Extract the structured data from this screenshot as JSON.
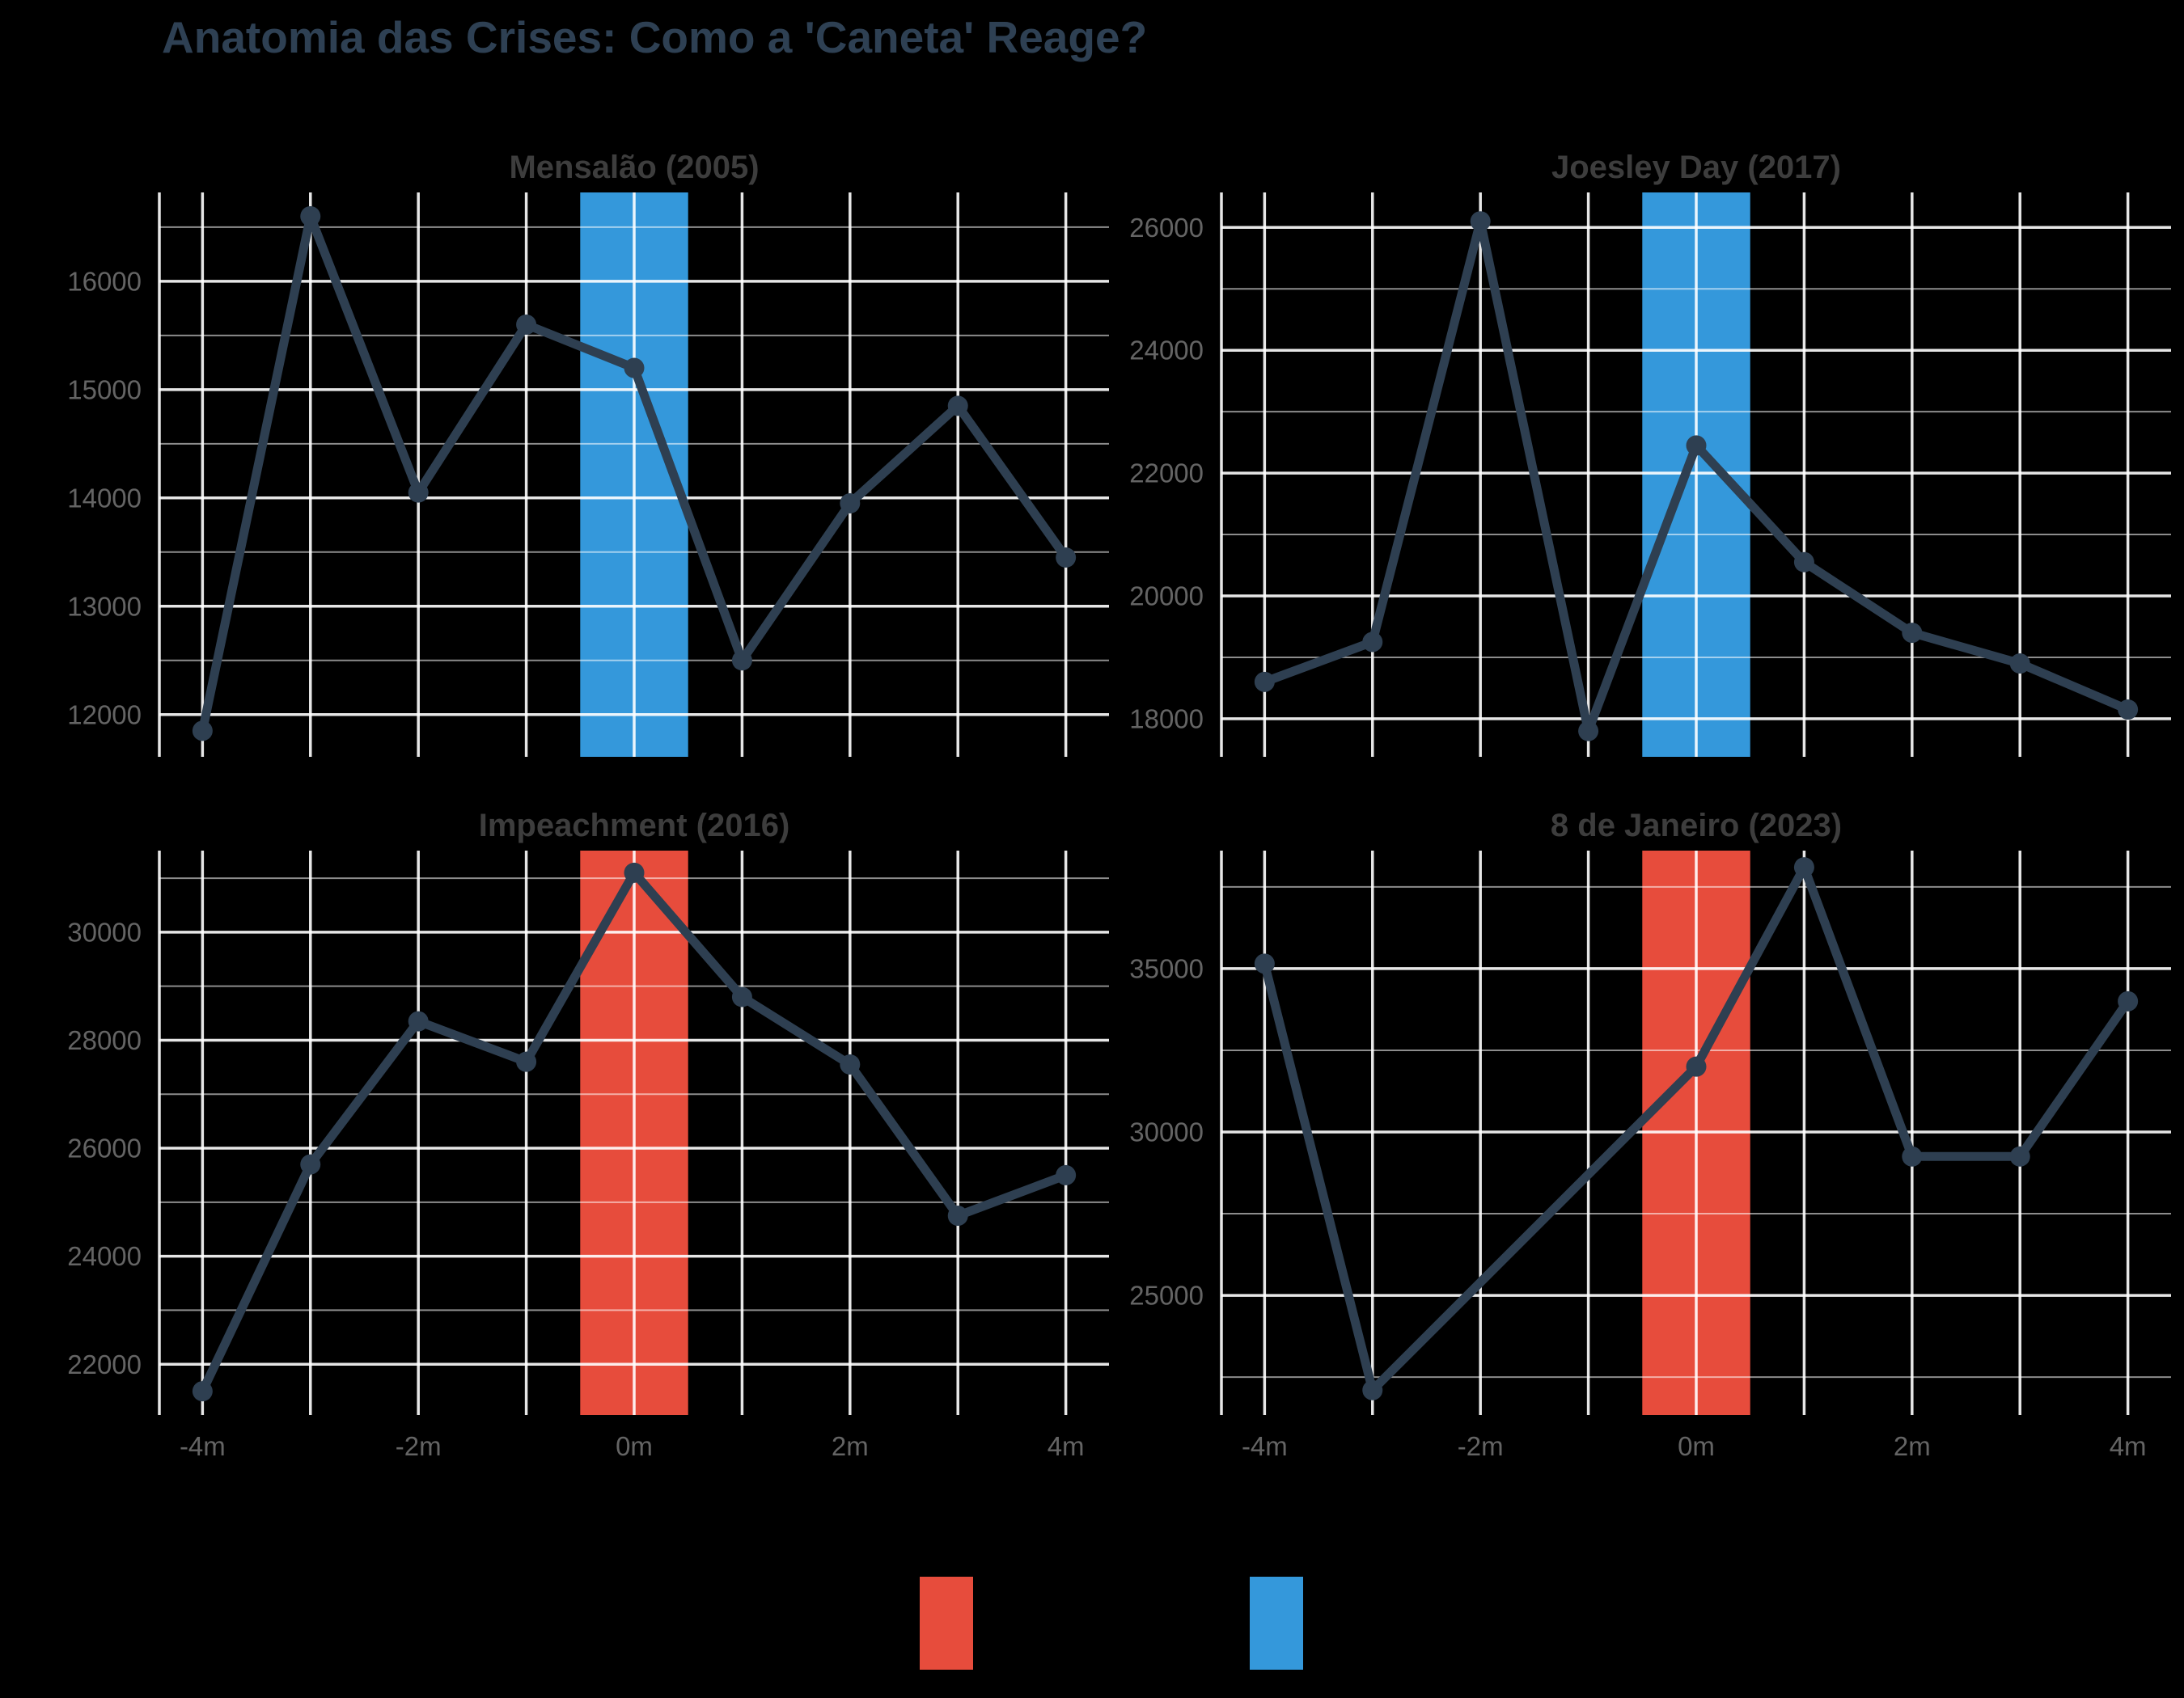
{
  "page_title": "Anatomia das Crises: Como a 'Caneta' Reage?",
  "colors": {
    "background": "#000000",
    "series_line": "#2e3f51",
    "grid_major": "rgba(255,255,255,0.90)",
    "grid_minor": "rgba(255,255,255,0.55)",
    "band_blue": "#3498db",
    "band_red": "#e74c3c",
    "main_title": "#2e4053",
    "subplot_title": "#3d3d3d",
    "tick_label": "#646464"
  },
  "x_axis": {
    "tick_positions": [
      -4,
      -2,
      0,
      2,
      4
    ],
    "tick_labels": [
      "-4m",
      "-2m",
      "0m",
      "2m",
      "4m"
    ]
  },
  "legend": {
    "swatches": [
      {
        "name": "legend-swatch-red",
        "color": "#e74c3c"
      },
      {
        "name": "legend-swatch-blue",
        "color": "#3498db"
      }
    ]
  },
  "chart_data": [
    {
      "id": "mensalao",
      "type": "line",
      "title": "Mensalão (2005)",
      "row": 0,
      "col": 0,
      "band_color": "#3498db",
      "band_x": [
        -0.5,
        0.5
      ],
      "x": [
        -4,
        -3,
        -2,
        -1,
        0,
        1,
        2,
        3,
        4
      ],
      "values": [
        11850,
        16600,
        14050,
        15600,
        15200,
        12500,
        13950,
        14850,
        13450
      ],
      "yticks": [
        12000,
        13000,
        14000,
        15000,
        16000
      ],
      "ylim": [
        11610,
        16820
      ],
      "xlim": [
        -4.4,
        4.4
      ],
      "show_x_labels": false
    },
    {
      "id": "joesley-day",
      "type": "line",
      "title": "Joesley Day (2017)",
      "row": 0,
      "col": 1,
      "band_color": "#3498db",
      "band_x": [
        -0.5,
        0.5
      ],
      "x": [
        -4,
        -3,
        -2,
        -1,
        0,
        1,
        2,
        3,
        4
      ],
      "values": [
        18600,
        19250,
        26100,
        17800,
        22450,
        20550,
        19400,
        18900,
        18150
      ],
      "yticks": [
        18000,
        20000,
        22000,
        24000,
        26000
      ],
      "ylim": [
        17380,
        26570
      ],
      "xlim": [
        -4.4,
        4.4
      ],
      "show_x_labels": false
    },
    {
      "id": "impeachment",
      "type": "line",
      "title": "Impeachment (2016)",
      "row": 1,
      "col": 0,
      "band_color": "#e74c3c",
      "band_x": [
        -0.5,
        0.5
      ],
      "x": [
        -4,
        -3,
        -2,
        -1,
        0,
        1,
        2,
        3,
        4
      ],
      "values": [
        21500,
        25700,
        28350,
        27600,
        31100,
        28800,
        27550,
        24750,
        25500
      ],
      "yticks": [
        22000,
        24000,
        26000,
        28000,
        30000
      ],
      "ylim": [
        21060,
        31510
      ],
      "xlim": [
        -4.4,
        4.4
      ],
      "show_x_labels": true
    },
    {
      "id": "8-de-janeiro",
      "type": "line",
      "title": "8 de Janeiro (2023)",
      "row": 1,
      "col": 1,
      "band_color": "#e74c3c",
      "band_x": [
        -0.5,
        0.5
      ],
      "x": [
        -4,
        -3,
        0,
        1,
        2,
        3,
        4
      ],
      "values": [
        35150,
        22100,
        32000,
        38100,
        29250,
        29250,
        34000
      ],
      "yticks": [
        25000,
        30000,
        35000
      ],
      "ylim": [
        21340,
        38610
      ],
      "xlim": [
        -4.4,
        4.4
      ],
      "show_x_labels": true
    }
  ]
}
